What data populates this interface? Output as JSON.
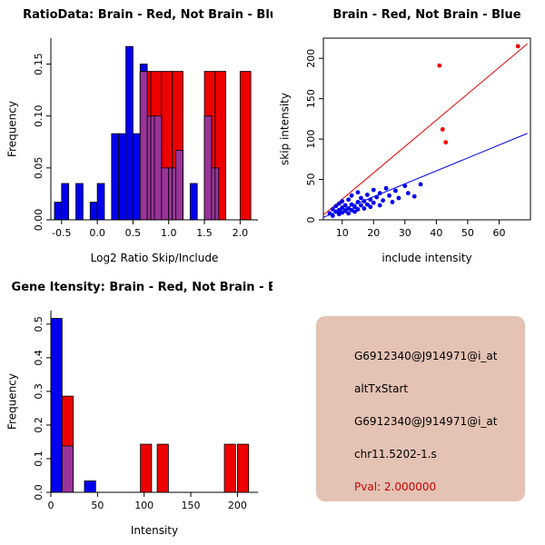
{
  "page": {
    "background": "#ffffff"
  },
  "colors": {
    "brain_red": "#EE0000",
    "not_brain_blue": "#0000EE",
    "overlap_purple": "#993399",
    "axis_black": "#000000"
  },
  "chart_data": [
    {
      "id": "ratio-histogram",
      "type": "histogram",
      "title": "RatioData: Brain - Red, Not Brain - Blue",
      "xlabel": "Log2 Ratio Skip/Include",
      "ylabel": "Frequency",
      "xlim": [
        -0.65,
        2.25
      ],
      "ylim": [
        0,
        0.175
      ],
      "xticks": [
        -0.5,
        0.0,
        0.5,
        1.0,
        1.5,
        2.0
      ],
      "xtick_labels": [
        "-0.5",
        "0.0",
        "0.5",
        "1.0",
        "1.5",
        "2.0"
      ],
      "yticks": [
        0.0,
        0.05,
        0.1,
        0.15
      ],
      "ytick_labels": [
        "0.00",
        "0.05",
        "0.10",
        "0.15"
      ],
      "grid": false,
      "overlap_color": "#993399",
      "series": [
        {
          "name": "Not Brain",
          "color": "#0000EE",
          "bin_width": 0.1,
          "bins": [
            {
              "x": -0.6,
              "h": 0.017
            },
            {
              "x": -0.5,
              "h": 0.035
            },
            {
              "x": -0.3,
              "h": 0.035
            },
            {
              "x": -0.1,
              "h": 0.017
            },
            {
              "x": 0.0,
              "h": 0.035
            },
            {
              "x": 0.2,
              "h": 0.083
            },
            {
              "x": 0.3,
              "h": 0.083
            },
            {
              "x": 0.4,
              "h": 0.167
            },
            {
              "x": 0.5,
              "h": 0.083
            },
            {
              "x": 0.6,
              "h": 0.15
            },
            {
              "x": 0.7,
              "h": 0.1
            },
            {
              "x": 0.8,
              "h": 0.1
            },
            {
              "x": 0.9,
              "h": 0.05
            },
            {
              "x": 1.0,
              "h": 0.05
            },
            {
              "x": 1.1,
              "h": 0.067
            },
            {
              "x": 1.3,
              "h": 0.035
            },
            {
              "x": 1.5,
              "h": 0.1
            },
            {
              "x": 1.6,
              "h": 0.05
            }
          ]
        },
        {
          "name": "Brain",
          "color": "#EE0000",
          "bin_width": 0.15,
          "bins": [
            {
              "x": 0.6,
              "h": 0.143
            },
            {
              "x": 0.75,
              "h": 0.143
            },
            {
              "x": 0.9,
              "h": 0.143
            },
            {
              "x": 1.05,
              "h": 0.143
            },
            {
              "x": 1.5,
              "h": 0.143
            },
            {
              "x": 1.65,
              "h": 0.143
            },
            {
              "x": 2.0,
              "h": 0.143
            }
          ]
        }
      ]
    },
    {
      "id": "intensity-scatter",
      "type": "scatter",
      "title": "Brain - Red, Not Brain - Blue",
      "xlabel": "include intensity",
      "ylabel": "skip intensity",
      "xlim": [
        4,
        70
      ],
      "ylim": [
        0,
        225
      ],
      "xticks": [
        10,
        20,
        30,
        40,
        50,
        60
      ],
      "xtick_labels": [
        "10",
        "20",
        "30",
        "40",
        "50",
        "60"
      ],
      "yticks": [
        0,
        50,
        100,
        150,
        200
      ],
      "ytick_labels": [
        "0",
        "50",
        "100",
        "150",
        "200"
      ],
      "grid": false,
      "series": [
        {
          "name": "Not Brain",
          "color": "#0000EE",
          "points": [
            [
              6,
              8
            ],
            [
              7,
              5
            ],
            [
              7,
              13
            ],
            [
              8,
              10
            ],
            [
              8,
              17
            ],
            [
              9,
              7
            ],
            [
              9,
              12
            ],
            [
              9,
              20
            ],
            [
              10,
              9
            ],
            [
              10,
              15
            ],
            [
              10,
              23
            ],
            [
              11,
              11
            ],
            [
              11,
              18
            ],
            [
              12,
              8
            ],
            [
              12,
              14
            ],
            [
              12,
              25
            ],
            [
              13,
              12
            ],
            [
              13,
              19
            ],
            [
              13,
              30
            ],
            [
              14,
              10
            ],
            [
              14,
              16
            ],
            [
              15,
              13
            ],
            [
              15,
              22
            ],
            [
              15,
              34
            ],
            [
              16,
              18
            ],
            [
              16,
              27
            ],
            [
              17,
              14
            ],
            [
              17,
              23
            ],
            [
              18,
              19
            ],
            [
              18,
              31
            ],
            [
              19,
              16
            ],
            [
              19,
              25
            ],
            [
              20,
              21
            ],
            [
              20,
              37
            ],
            [
              21,
              28
            ],
            [
              22,
              18
            ],
            [
              22,
              33
            ],
            [
              23,
              24
            ],
            [
              24,
              39
            ],
            [
              25,
              30
            ],
            [
              26,
              22
            ],
            [
              27,
              36
            ],
            [
              28,
              27
            ],
            [
              30,
              42
            ],
            [
              31,
              33
            ],
            [
              33,
              29
            ],
            [
              35,
              44
            ]
          ]
        },
        {
          "name": "Brain",
          "color": "#EE0000",
          "points": [
            [
              41,
              191
            ],
            [
              42,
              112
            ],
            [
              43,
              96
            ],
            [
              66,
              215
            ]
          ]
        }
      ],
      "lines": [
        {
          "name": "brain-fit",
          "color": "#EE0000",
          "x": [
            4,
            69
          ],
          "y": [
            6,
            218
          ]
        },
        {
          "name": "not-brain-fit",
          "color": "#0000EE",
          "x": [
            4,
            69
          ],
          "y": [
            3,
            107
          ]
        }
      ]
    },
    {
      "id": "gene-histogram",
      "type": "histogram",
      "title": "Gene Itensity: Brain - Red, Not Brain - Blue",
      "xlabel": "Intensity",
      "ylabel": "Frequency",
      "xlim": [
        0,
        222
      ],
      "ylim": [
        0,
        0.54
      ],
      "xticks": [
        0,
        50,
        100,
        150,
        200
      ],
      "xtick_labels": [
        "0",
        "50",
        "100",
        "150",
        "200"
      ],
      "yticks": [
        0.0,
        0.1,
        0.2,
        0.3,
        0.4,
        0.5
      ],
      "ytick_labels": [
        "0.0",
        "0.1",
        "0.2",
        "0.3",
        "0.4",
        "0.5"
      ],
      "grid": false,
      "overlap_color": "#993399",
      "series": [
        {
          "name": "Not Brain",
          "color": "#0000EE",
          "bin_width": 12,
          "bins": [
            {
              "x": 0,
              "h": 0.517
            },
            {
              "x": 12,
              "h": 0.138
            },
            {
              "x": 36,
              "h": 0.034
            }
          ]
        },
        {
          "name": "Brain",
          "color": "#EE0000",
          "bin_width": 12,
          "bins": [
            {
              "x": 12,
              "h": 0.286
            },
            {
              "x": 96,
              "h": 0.143
            },
            {
              "x": 114,
              "h": 0.143
            },
            {
              "x": 186,
              "h": 0.143
            },
            {
              "x": 200,
              "h": 0.143
            }
          ]
        }
      ]
    }
  ],
  "info_panel": {
    "background": "#E4C2B4",
    "lines": [
      {
        "text": "G6912340@J914971@i_at",
        "color": "#000000"
      },
      {
        "text": "altTxStart",
        "color": "#000000"
      },
      {
        "text": "G6912340@J914971@i_at",
        "color": "#000000"
      },
      {
        "text": "chr11.5202-1.s",
        "color": "#000000"
      },
      {
        "text": "Pval: 2.000000",
        "color": "#CC0000"
      }
    ]
  }
}
